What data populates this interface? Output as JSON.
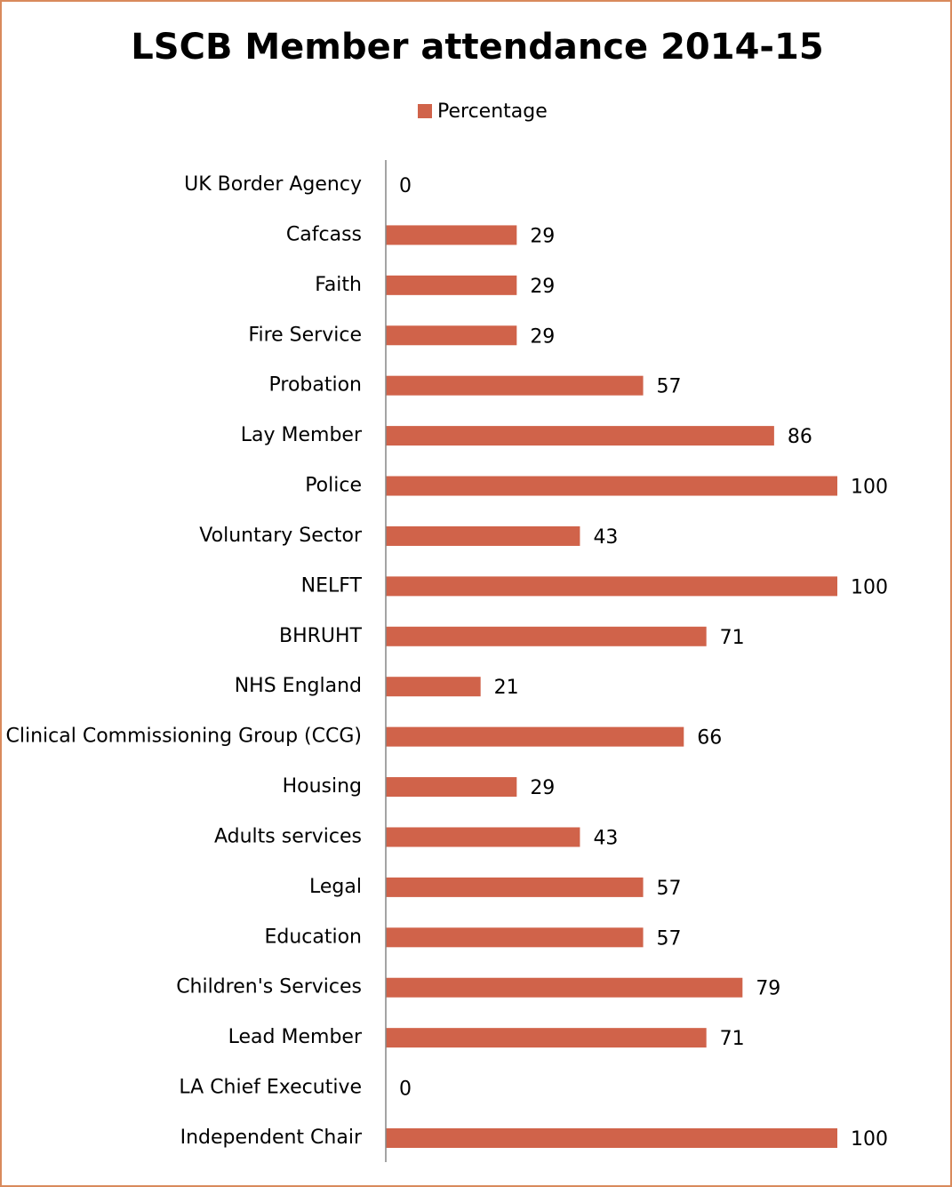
{
  "chart_data": {
    "type": "bar",
    "orientation": "horizontal",
    "title": "LSCB Member attendance 2014-15",
    "categories": [
      "UK Border Agency",
      "Cafcass",
      "Faith",
      "Fire Service",
      "Probation",
      "Lay Member",
      "Police",
      "Voluntary Sector",
      "NELFT",
      "BHRUHT",
      "NHS England",
      "Clinical Commissioning Group (CCG)",
      "Housing",
      "Adults services",
      "Legal",
      "Education",
      "Children's Services",
      "Lead Member",
      "LA Chief Executive",
      "Independent Chair"
    ],
    "series": [
      {
        "name": "Percentage",
        "color": "#d0634a",
        "values": [
          0,
          29,
          29,
          29,
          57,
          86,
          100,
          43,
          100,
          71,
          21,
          66,
          29,
          43,
          57,
          57,
          79,
          71,
          0,
          100
        ]
      }
    ],
    "xlim": [
      0,
      100
    ],
    "legend": "top"
  }
}
